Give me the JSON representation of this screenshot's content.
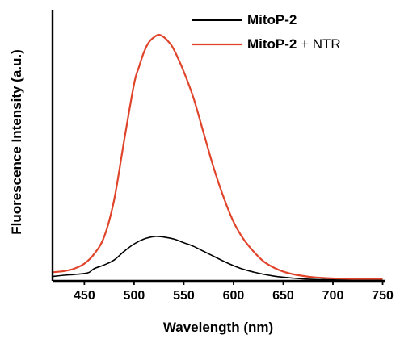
{
  "chart_data": {
    "type": "line",
    "title": "",
    "xlabel": "Wavelength (nm)",
    "ylabel": "Fluorescence Intensity (a.u.)",
    "xlim": [
      418,
      752
    ],
    "ylim": [
      0,
      1.0
    ],
    "xticks": [
      450,
      500,
      550,
      600,
      650,
      700,
      750
    ],
    "yticks_shown": false,
    "grid": false,
    "legend_position": "top-right",
    "series": [
      {
        "name": "MitoP-2",
        "color": "#000000",
        "x": [
          418,
          430,
          440,
          450,
          455,
          460,
          470,
          480,
          490,
          500,
          510,
          520,
          525,
          530,
          540,
          550,
          560,
          570,
          580,
          590,
          600,
          610,
          620,
          630,
          640,
          650,
          660,
          670,
          680,
          690,
          700,
          710,
          720,
          730,
          740,
          750
        ],
        "y": [
          0.018,
          0.023,
          0.026,
          0.03,
          0.035,
          0.05,
          0.065,
          0.085,
          0.12,
          0.15,
          0.17,
          0.18,
          0.18,
          0.178,
          0.17,
          0.155,
          0.14,
          0.12,
          0.1,
          0.08,
          0.062,
          0.047,
          0.036,
          0.027,
          0.02,
          0.015,
          0.011,
          0.008,
          0.006,
          0.005,
          0.004,
          0.003,
          0.002,
          0.002,
          0.002,
          0.002
        ]
      },
      {
        "name": "MitoP-2 + NTR",
        "color": "#e0452c",
        "x": [
          418,
          430,
          440,
          450,
          460,
          470,
          480,
          490,
          500,
          505,
          510,
          515,
          520,
          525,
          530,
          535,
          540,
          550,
          560,
          570,
          580,
          590,
          600,
          610,
          620,
          630,
          640,
          650,
          660,
          670,
          680,
          690,
          700,
          710,
          720,
          730,
          740,
          750
        ],
        "y": [
          0.035,
          0.04,
          0.05,
          0.07,
          0.11,
          0.18,
          0.33,
          0.57,
          0.8,
          0.87,
          0.93,
          0.97,
          0.99,
          1.0,
          0.99,
          0.97,
          0.94,
          0.85,
          0.74,
          0.6,
          0.46,
          0.34,
          0.24,
          0.17,
          0.12,
          0.08,
          0.055,
          0.038,
          0.027,
          0.02,
          0.015,
          0.012,
          0.01,
          0.009,
          0.008,
          0.008,
          0.008,
          0.008
        ]
      }
    ],
    "legend": {
      "entries": [
        {
          "bold_part": "MitoP-2",
          "plain_part": ""
        },
        {
          "bold_part": "MitoP-2",
          "plain_part": " + NTR"
        }
      ]
    }
  }
}
